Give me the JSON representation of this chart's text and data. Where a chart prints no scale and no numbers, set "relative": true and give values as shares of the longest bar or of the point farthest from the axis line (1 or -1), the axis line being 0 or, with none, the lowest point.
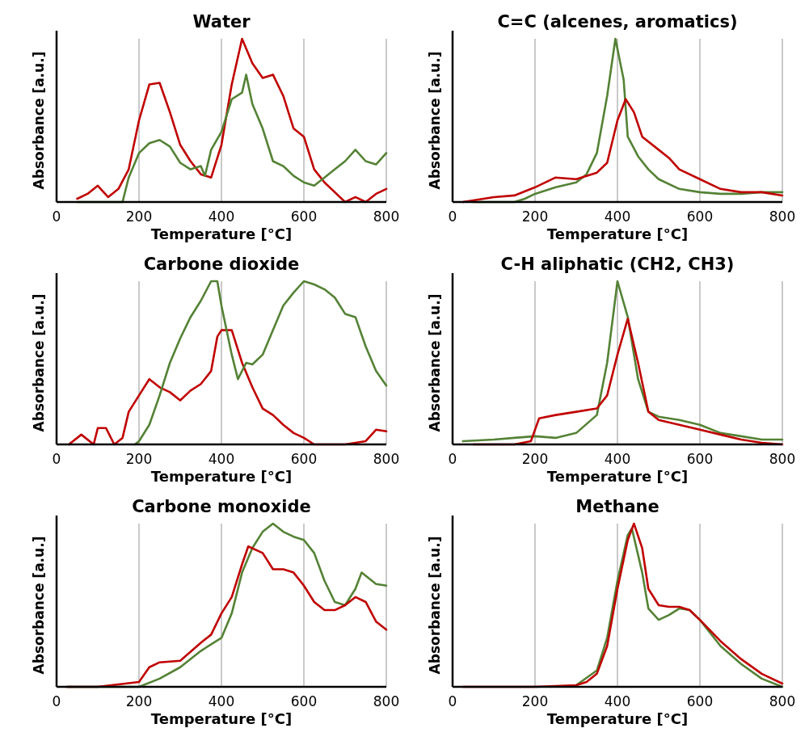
{
  "chart_data": [
    {
      "type": "line",
      "title": "Water",
      "xlabel": "Temperature [°C]",
      "ylabel": "Absorbance [a.u.]",
      "relative": true,
      "xlim": [
        0,
        800
      ],
      "xticks": [
        0,
        200,
        400,
        600,
        800
      ],
      "grid": "x",
      "line_style": "solid",
      "marker": "none",
      "series": [
        {
          "color": "#c00000",
          "x": [
            50,
            75,
            100,
            125,
            150,
            175,
            200,
            225,
            250,
            275,
            300,
            325,
            350,
            375,
            400,
            425,
            450,
            475,
            500,
            525,
            550,
            575,
            600,
            625,
            650,
            675,
            700,
            725,
            750,
            775,
            800
          ],
          "values": [
            0.02,
            0.05,
            0.1,
            0.03,
            0.08,
            0.2,
            0.5,
            0.72,
            0.73,
            0.55,
            0.35,
            0.25,
            0.17,
            0.15,
            0.35,
            0.72,
            1,
            0.85,
            0.76,
            0.78,
            0.65,
            0.45,
            0.4,
            0.2,
            0.12,
            0.06,
            0,
            0.03,
            0,
            0.05,
            0.08
          ]
        },
        {
          "color": "#548235",
          "x": [
            50,
            100,
            160,
            175,
            200,
            225,
            250,
            275,
            300,
            325,
            350,
            360,
            375,
            400,
            425,
            450,
            460,
            475,
            500,
            525,
            550,
            575,
            600,
            625,
            650,
            675,
            700,
            725,
            750,
            775,
            800
          ],
          "values": [
            0,
            0,
            0,
            0.15,
            0.3,
            0.36,
            0.38,
            0.34,
            0.24,
            0.2,
            0.22,
            0.16,
            0.32,
            0.43,
            0.63,
            0.67,
            0.78,
            0.6,
            0.45,
            0.25,
            0.22,
            0.16,
            0.12,
            0.1,
            0.15,
            0.2,
            0.25,
            0.32,
            0.25,
            0.23,
            0.3
          ]
        }
      ]
    },
    {
      "type": "line",
      "title": "C=C (alcenes, aromatics)",
      "xlabel": "Temperature [°C]",
      "ylabel": "Absorbance [a.u.]",
      "relative": true,
      "xlim": [
        0,
        800
      ],
      "xticks": [
        0,
        200,
        400,
        600,
        800
      ],
      "grid": "x",
      "line_style": "solid",
      "marker": "none",
      "series": [
        {
          "color": "#548235",
          "x": [
            50,
            100,
            150,
            175,
            200,
            250,
            300,
            325,
            350,
            375,
            395,
            415,
            425,
            450,
            475,
            500,
            550,
            600,
            650,
            700,
            750,
            800
          ],
          "values": [
            0,
            0,
            0,
            0.02,
            0.05,
            0.09,
            0.12,
            0.17,
            0.3,
            0.65,
            1,
            0.75,
            0.4,
            0.28,
            0.2,
            0.14,
            0.08,
            0.06,
            0.05,
            0.05,
            0.06,
            0.06
          ]
        },
        {
          "color": "#c00000",
          "x": [
            25,
            50,
            100,
            150,
            200,
            250,
            300,
            350,
            375,
            400,
            420,
            440,
            460,
            500,
            525,
            550,
            600,
            650,
            700,
            750,
            800
          ],
          "values": [
            0,
            0.01,
            0.03,
            0.04,
            0.09,
            0.15,
            0.14,
            0.18,
            0.24,
            0.5,
            0.63,
            0.55,
            0.4,
            0.32,
            0.27,
            0.2,
            0.14,
            0.08,
            0.06,
            0.06,
            0.04
          ]
        }
      ]
    },
    {
      "type": "line",
      "title": "Carbone dioxide",
      "xlabel": "Temperature [°C]",
      "ylabel": "Absorbance [a.u.]",
      "relative": true,
      "xlim": [
        0,
        800
      ],
      "xticks": [
        0,
        200,
        400,
        600,
        800
      ],
      "grid": "x",
      "line_style": "solid",
      "marker": "none",
      "series": [
        {
          "color": "#c00000",
          "x": [
            30,
            60,
            90,
            100,
            120,
            140,
            160,
            175,
            200,
            225,
            250,
            275,
            300,
            325,
            350,
            375,
            390,
            400,
            425,
            450,
            475,
            500,
            525,
            550,
            575,
            600,
            625,
            700,
            750,
            775,
            800
          ],
          "values": [
            0,
            0.06,
            0,
            0.1,
            0.1,
            0,
            0.04,
            0.2,
            0.3,
            0.4,
            0.35,
            0.32,
            0.27,
            0.33,
            0.37,
            0.45,
            0.66,
            0.7,
            0.7,
            0.5,
            0.35,
            0.22,
            0.18,
            0.12,
            0.07,
            0.04,
            0,
            0,
            0.02,
            0.09,
            0.08
          ]
        },
        {
          "color": "#548235",
          "x": [
            190,
            200,
            225,
            250,
            275,
            300,
            325,
            350,
            375,
            390,
            400,
            425,
            440,
            460,
            475,
            500,
            525,
            550,
            575,
            600,
            625,
            650,
            675,
            700,
            725,
            750,
            775,
            800
          ],
          "values": [
            0,
            0.02,
            0.12,
            0.3,
            0.5,
            0.65,
            0.78,
            0.88,
            1,
            1,
            0.85,
            0.55,
            0.4,
            0.5,
            0.49,
            0.55,
            0.7,
            0.85,
            0.93,
            1,
            0.98,
            0.95,
            0.9,
            0.8,
            0.78,
            0.6,
            0.45,
            0.36
          ]
        }
      ]
    },
    {
      "type": "line",
      "title": "C-H aliphatic (CH2, CH3)",
      "xlabel": "Temperature [°C]",
      "ylabel": "Absorbance [a.u.]",
      "relative": true,
      "xlim": [
        0,
        800
      ],
      "xticks": [
        0,
        200,
        400,
        600,
        800
      ],
      "grid": "x",
      "line_style": "solid",
      "marker": "none",
      "series": [
        {
          "color": "#548235",
          "x": [
            25,
            100,
            150,
            200,
            250,
            300,
            350,
            375,
            400,
            425,
            450,
            475,
            500,
            550,
            600,
            650,
            700,
            750,
            800
          ],
          "values": [
            0.02,
            0.03,
            0.04,
            0.05,
            0.04,
            0.07,
            0.18,
            0.5,
            1,
            0.78,
            0.4,
            0.2,
            0.17,
            0.15,
            0.12,
            0.07,
            0.05,
            0.03,
            0.03
          ]
        },
        {
          "color": "#c00000",
          "x": [
            50,
            100,
            150,
            190,
            210,
            250,
            300,
            350,
            375,
            400,
            425,
            450,
            475,
            500,
            550,
            600,
            650,
            700,
            750,
            800
          ],
          "values": [
            0,
            0,
            0,
            0.02,
            0.16,
            0.18,
            0.2,
            0.22,
            0.3,
            0.55,
            0.77,
            0.5,
            0.2,
            0.15,
            0.12,
            0.09,
            0.06,
            0.03,
            0.01,
            0
          ]
        }
      ]
    },
    {
      "type": "line",
      "title": "Carbone monoxide",
      "xlabel": "Temperature [°C]",
      "ylabel": "Absorbance [a.u.]",
      "relative": true,
      "xlim": [
        0,
        800
      ],
      "xticks": [
        0,
        200,
        400,
        600,
        800
      ],
      "grid": "x",
      "line_style": "solid",
      "marker": "none",
      "series": [
        {
          "color": "#548235",
          "x": [
            25,
            100,
            200,
            250,
            300,
            350,
            400,
            425,
            450,
            475,
            500,
            525,
            550,
            575,
            600,
            625,
            650,
            675,
            700,
            725,
            740,
            775,
            800
          ],
          "values": [
            0,
            0,
            0,
            0.05,
            0.12,
            0.22,
            0.3,
            0.45,
            0.7,
            0.85,
            0.95,
            1,
            0.95,
            0.92,
            0.9,
            0.82,
            0.65,
            0.52,
            0.5,
            0.6,
            0.7,
            0.63,
            0.62
          ]
        },
        {
          "color": "#c00000",
          "x": [
            25,
            100,
            200,
            225,
            250,
            300,
            350,
            375,
            400,
            425,
            450,
            465,
            500,
            525,
            550,
            575,
            600,
            625,
            650,
            675,
            700,
            725,
            750,
            775,
            800
          ],
          "values": [
            0,
            0,
            0.03,
            0.12,
            0.15,
            0.16,
            0.27,
            0.32,
            0.45,
            0.55,
            0.75,
            0.86,
            0.82,
            0.72,
            0.72,
            0.7,
            0.62,
            0.52,
            0.47,
            0.47,
            0.5,
            0.55,
            0.52,
            0.4,
            0.35
          ]
        }
      ]
    },
    {
      "type": "line",
      "title": "Methane",
      "xlabel": "Temperature [°C]",
      "ylabel": "Absorbance [a.u.]",
      "relative": true,
      "xlim": [
        0,
        800
      ],
      "xticks": [
        0,
        200,
        400,
        600,
        800
      ],
      "grid": "x",
      "line_style": "solid",
      "marker": "none",
      "series": [
        {
          "color": "#548235",
          "x": [
            300,
            350,
            375,
            400,
            425,
            435,
            460,
            475,
            500,
            525,
            550,
            575,
            600,
            650,
            700,
            750,
            800
          ],
          "values": [
            0.01,
            0.1,
            0.3,
            0.65,
            0.93,
            0.97,
            0.7,
            0.48,
            0.41,
            0.44,
            0.48,
            0.47,
            0.41,
            0.25,
            0.14,
            0.05,
            0
          ]
        },
        {
          "color": "#c00000",
          "x": [
            25,
            200,
            300,
            325,
            350,
            375,
            400,
            425,
            440,
            460,
            475,
            500,
            525,
            550,
            575,
            600,
            650,
            700,
            750,
            800
          ],
          "values": [
            0,
            0,
            0.01,
            0.03,
            0.08,
            0.25,
            0.6,
            0.9,
            1,
            0.85,
            0.6,
            0.5,
            0.49,
            0.49,
            0.47,
            0.41,
            0.28,
            0.17,
            0.08,
            0.02
          ]
        }
      ]
    }
  ]
}
